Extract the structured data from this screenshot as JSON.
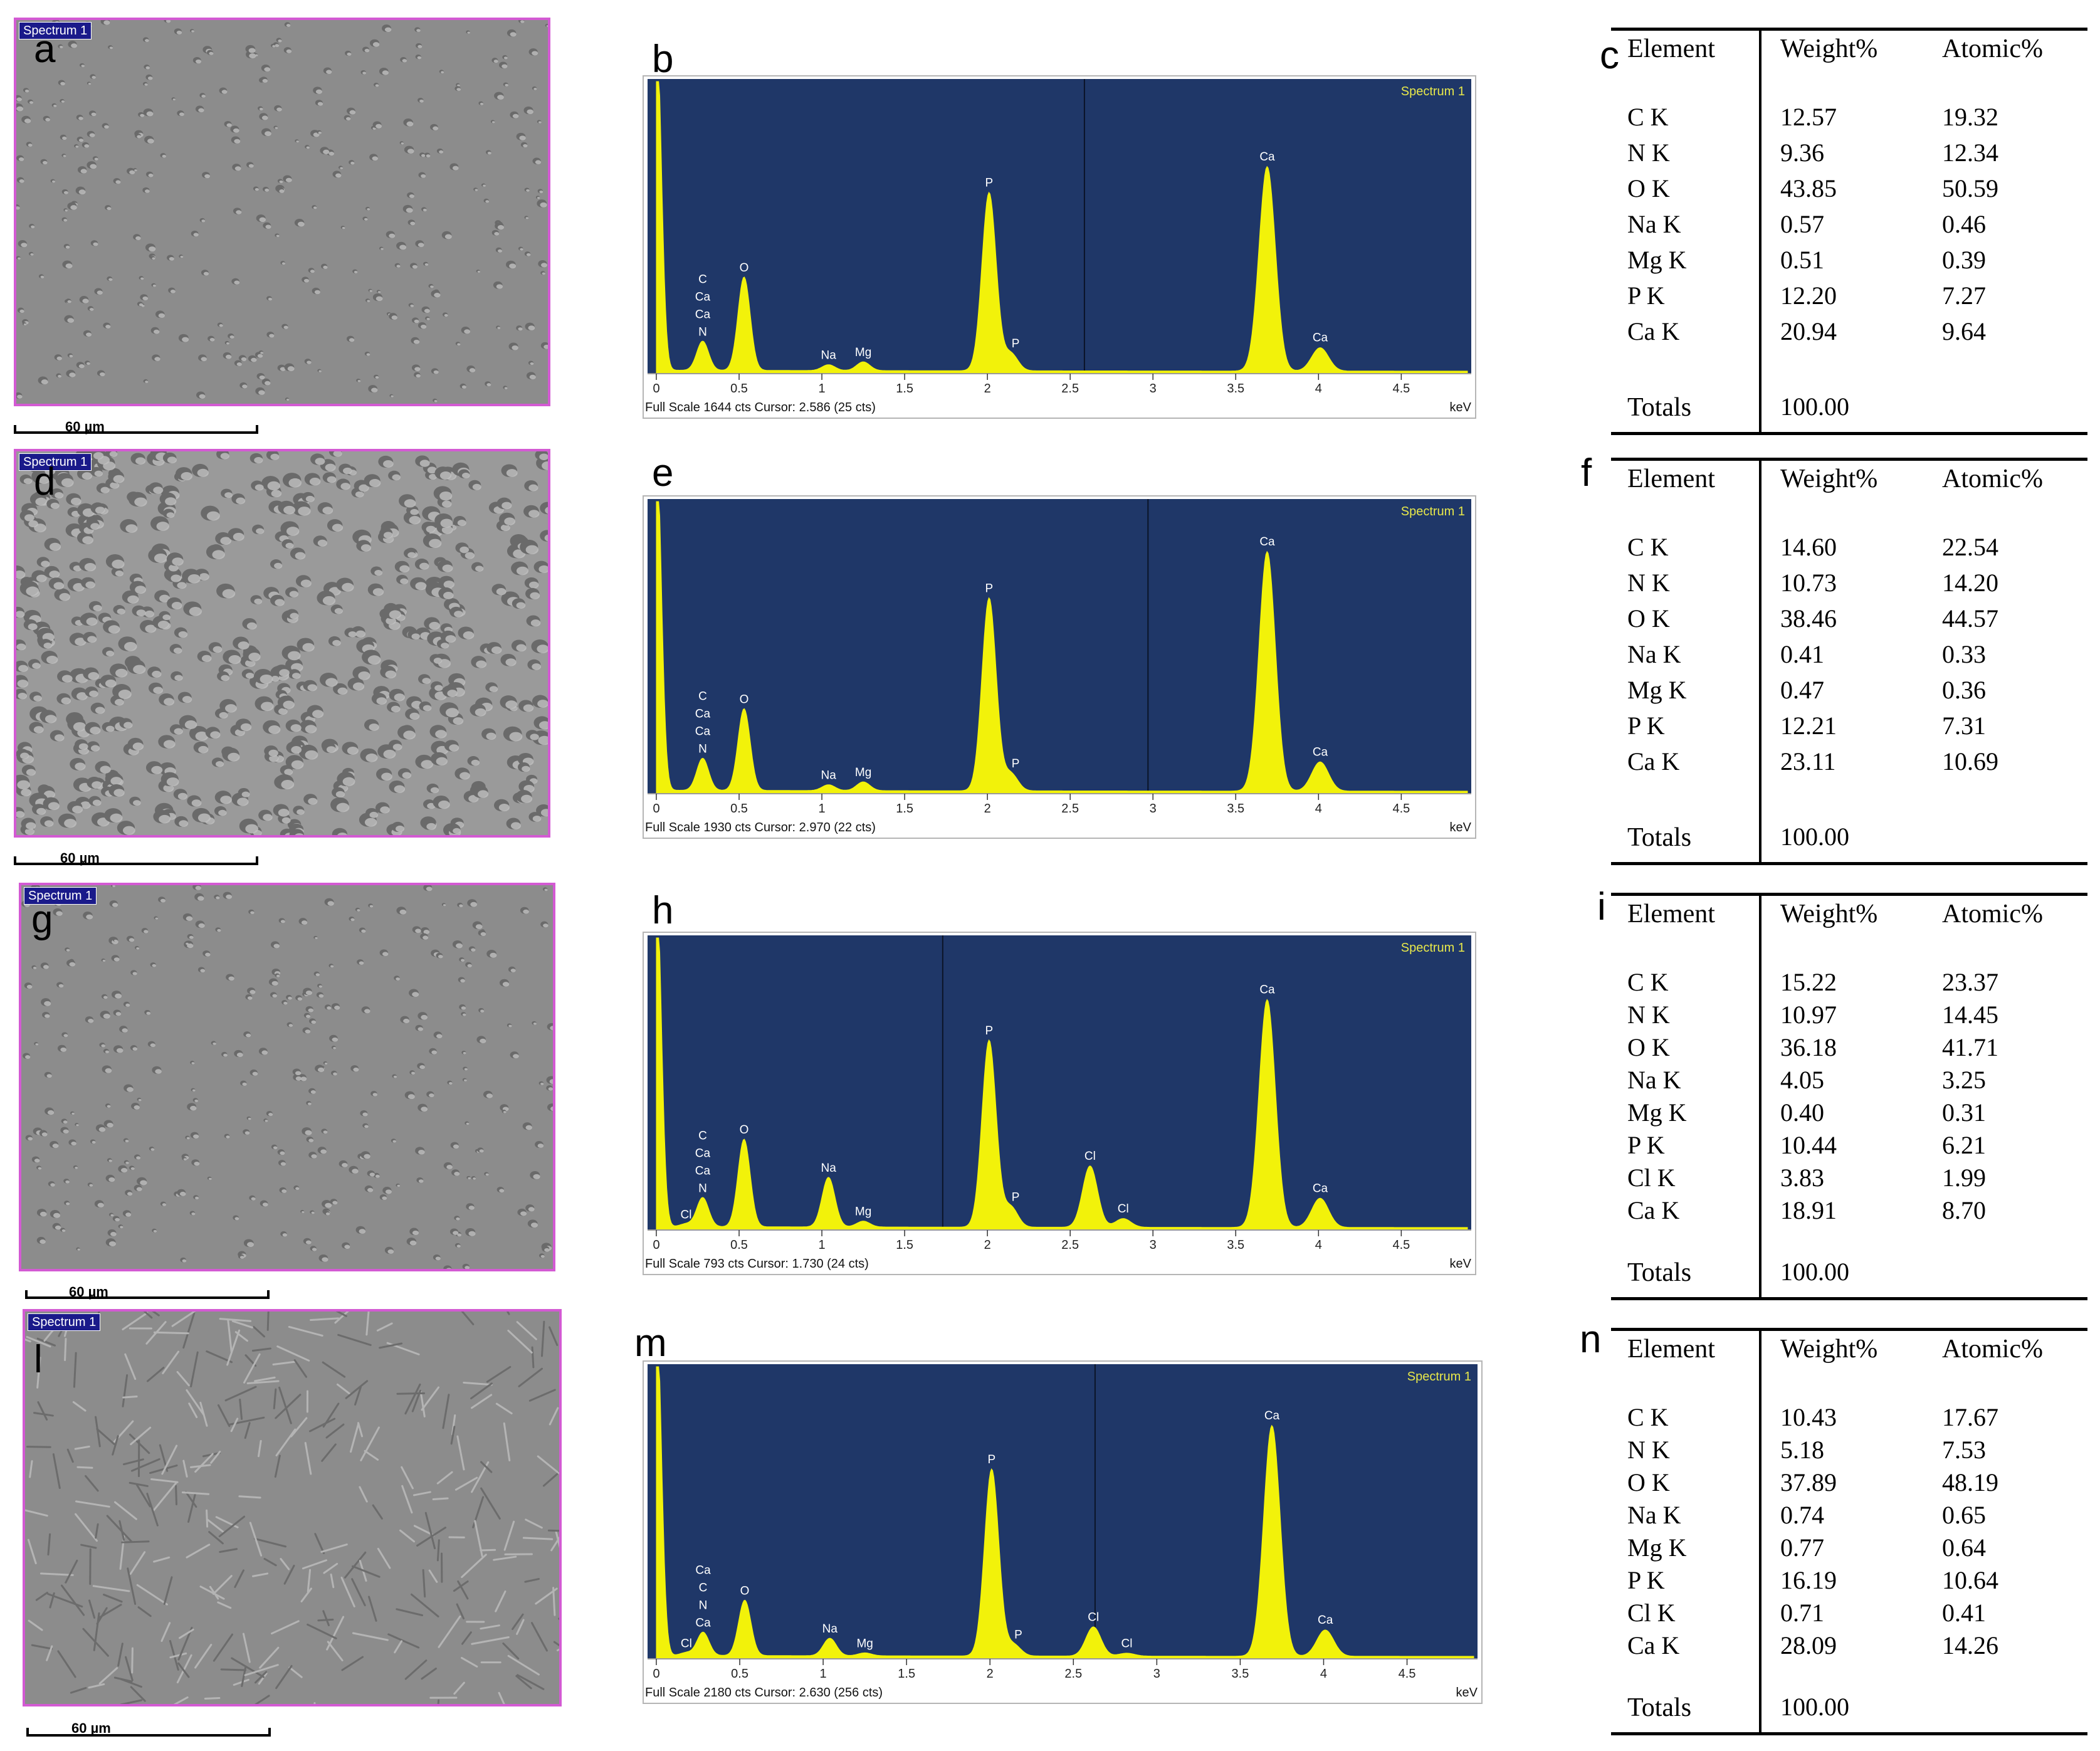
{
  "panels": [
    {
      "sem": {
        "label": "a",
        "tag": "Spectrum 1",
        "scale": "60 µm"
      },
      "spectrum": {
        "label": "b",
        "title": "Spectrum 1",
        "footer": "Full Scale 1644 cts Cursor: 2.586  (25 cts)",
        "unit": "keV",
        "cursor": 2.586
      },
      "table": {
        "label": "c",
        "headers": [
          "Element",
          "Weight%",
          "Atomic%"
        ],
        "rows": [
          [
            "C K",
            "12.57",
            "19.32"
          ],
          [
            "N K",
            "9.36",
            "12.34"
          ],
          [
            "O K",
            "43.85",
            "50.59"
          ],
          [
            "Na K",
            "0.57",
            "0.46"
          ],
          [
            "Mg K",
            "0.51",
            "0.39"
          ],
          [
            "P K",
            "12.20",
            "7.27"
          ],
          [
            "Ca K",
            "20.94",
            "9.64"
          ]
        ],
        "totals_label": "Totals",
        "totals_value": "100.00"
      }
    },
    {
      "sem": {
        "label": "d",
        "tag": "Spectrum 1",
        "scale": "60 µm"
      },
      "spectrum": {
        "label": "e",
        "title": "Spectrum 1",
        "footer": "Full Scale 1930 cts Cursor: 2.970  (22 cts)",
        "unit": "keV",
        "cursor": 2.97
      },
      "table": {
        "label": "f",
        "headers": [
          "Element",
          "Weight%",
          "Atomic%"
        ],
        "rows": [
          [
            "C K",
            "14.60",
            "22.54"
          ],
          [
            "N K",
            "10.73",
            "14.20"
          ],
          [
            "O K",
            "38.46",
            "44.57"
          ],
          [
            "Na K",
            "0.41",
            "0.33"
          ],
          [
            "Mg K",
            "0.47",
            "0.36"
          ],
          [
            "P K",
            "12.21",
            "7.31"
          ],
          [
            "Ca K",
            "23.11",
            "10.69"
          ]
        ],
        "totals_label": "Totals",
        "totals_value": "100.00"
      }
    },
    {
      "sem": {
        "label": "g",
        "tag": "Spectrum 1",
        "scale": "60 µm"
      },
      "spectrum": {
        "label": "h",
        "title": "Spectrum 1",
        "footer": "Full Scale 793 cts Cursor: 1.730  (24 cts)",
        "unit": "keV",
        "cursor": 1.73
      },
      "table": {
        "label": "i",
        "headers": [
          "Element",
          "Weight%",
          "Atomic%"
        ],
        "rows": [
          [
            "C K",
            "15.22",
            "23.37"
          ],
          [
            "N K",
            "10.97",
            "14.45"
          ],
          [
            "O K",
            "36.18",
            "41.71"
          ],
          [
            "Na K",
            "4.05",
            "3.25"
          ],
          [
            "Mg K",
            "0.40",
            "0.31"
          ],
          [
            "P K",
            "10.44",
            "6.21"
          ],
          [
            "Cl K",
            "3.83",
            "1.99"
          ],
          [
            "Ca K",
            "18.91",
            "8.70"
          ]
        ],
        "totals_label": "Totals",
        "totals_value": "100.00"
      }
    },
    {
      "sem": {
        "label": "l",
        "tag": "Spectrum 1",
        "scale": "60 µm"
      },
      "spectrum": {
        "label": "m",
        "title": "Spectrum 1",
        "footer": "Full Scale 2180 cts Cursor: 2.630  (256 cts)",
        "unit": "keV",
        "cursor": 2.63
      },
      "table": {
        "label": "n",
        "headers": [
          "Element",
          "Weight%",
          "Atomic%"
        ],
        "rows": [
          [
            "C K",
            "10.43",
            "17.67"
          ],
          [
            "N K",
            "5.18",
            "7.53"
          ],
          [
            "O K",
            "37.89",
            "48.19"
          ],
          [
            "Na K",
            "0.74",
            "0.65"
          ],
          [
            "Mg K",
            "0.77",
            "0.64"
          ],
          [
            "P K",
            "16.19",
            "10.64"
          ],
          [
            "Cl K",
            "0.71",
            "0.41"
          ],
          [
            "Ca K",
            "28.09",
            "14.26"
          ]
        ],
        "totals_label": "Totals",
        "totals_value": "100.00"
      }
    }
  ],
  "chart_data": [
    {
      "type": "line",
      "title": "Spectrum 1",
      "xlabel": "keV",
      "xlim": [
        0,
        4.9
      ],
      "xticks": [
        "0",
        "0.5",
        "1",
        "1.5",
        "2",
        "2.5",
        "3",
        "3.5",
        "4",
        "4.5"
      ],
      "peaks": [
        {
          "label": "",
          "x": 0.0,
          "y": 1.2
        },
        {
          "label": "C\nCa\nCa\nN",
          "x": 0.28,
          "y": 0.1
        },
        {
          "label": "O",
          "x": 0.53,
          "y": 0.32
        },
        {
          "label": "Na",
          "x": 1.04,
          "y": 0.02
        },
        {
          "label": "Mg",
          "x": 1.25,
          "y": 0.03
        },
        {
          "label": "P",
          "x": 2.01,
          "y": 0.61
        },
        {
          "label": "P",
          "x": 2.14,
          "y": 0.06
        },
        {
          "label": "Ca",
          "x": 3.69,
          "y": 0.7
        },
        {
          "label": "Ca",
          "x": 4.01,
          "y": 0.08
        }
      ]
    },
    {
      "type": "line",
      "title": "Spectrum 1",
      "xlabel": "keV",
      "xlim": [
        0,
        4.9
      ],
      "xticks": [
        "0",
        "0.5",
        "1",
        "1.5",
        "2",
        "2.5",
        "3",
        "3.5",
        "4",
        "4.5"
      ],
      "peaks": [
        {
          "label": "",
          "x": 0.0,
          "y": 1.2
        },
        {
          "label": "C\nCa\nCa\nN",
          "x": 0.28,
          "y": 0.11
        },
        {
          "label": "O",
          "x": 0.53,
          "y": 0.28
        },
        {
          "label": "Na",
          "x": 1.04,
          "y": 0.02
        },
        {
          "label": "Mg",
          "x": 1.25,
          "y": 0.03
        },
        {
          "label": "P",
          "x": 2.01,
          "y": 0.66
        },
        {
          "label": "P",
          "x": 2.14,
          "y": 0.06
        },
        {
          "label": "Ca",
          "x": 3.69,
          "y": 0.82
        },
        {
          "label": "Ca",
          "x": 4.01,
          "y": 0.1
        }
      ]
    },
    {
      "type": "line",
      "title": "Spectrum 1",
      "xlabel": "keV",
      "xlim": [
        0,
        4.9
      ],
      "xticks": [
        "0",
        "0.5",
        "1",
        "1.5",
        "2",
        "2.5",
        "3",
        "3.5",
        "4",
        "4.5"
      ],
      "peaks": [
        {
          "label": "",
          "x": 0.0,
          "y": 1.2
        },
        {
          "label": "Cl",
          "x": 0.18,
          "y": 0.01
        },
        {
          "label": "C\nCa\nCa\nN",
          "x": 0.28,
          "y": 0.1
        },
        {
          "label": "O",
          "x": 0.53,
          "y": 0.3
        },
        {
          "label": "Na",
          "x": 1.04,
          "y": 0.17
        },
        {
          "label": "Mg",
          "x": 1.25,
          "y": 0.02
        },
        {
          "label": "P",
          "x": 2.01,
          "y": 0.64
        },
        {
          "label": "P",
          "x": 2.14,
          "y": 0.07
        },
        {
          "label": "Cl",
          "x": 2.62,
          "y": 0.21
        },
        {
          "label": "Cl",
          "x": 2.82,
          "y": 0.03
        },
        {
          "label": "Ca",
          "x": 3.69,
          "y": 0.78
        },
        {
          "label": "Ca",
          "x": 4.01,
          "y": 0.1
        }
      ]
    },
    {
      "type": "line",
      "title": "Spectrum 1",
      "xlabel": "keV",
      "xlim": [
        0,
        4.9
      ],
      "xticks": [
        "0",
        "0.5",
        "1",
        "1.5",
        "2",
        "2.5",
        "3",
        "3.5",
        "4",
        "4.5"
      ],
      "peaks": [
        {
          "label": "",
          "x": 0.0,
          "y": 1.2
        },
        {
          "label": "Cl",
          "x": 0.18,
          "y": 0.01
        },
        {
          "label": "Ca\nC\nN\nCa",
          "x": 0.28,
          "y": 0.08
        },
        {
          "label": "O",
          "x": 0.53,
          "y": 0.19
        },
        {
          "label": "Na",
          "x": 1.04,
          "y": 0.06
        },
        {
          "label": "Mg",
          "x": 1.25,
          "y": 0.01
        },
        {
          "label": "P",
          "x": 2.01,
          "y": 0.64
        },
        {
          "label": "P",
          "x": 2.14,
          "y": 0.04
        },
        {
          "label": "Cl",
          "x": 2.62,
          "y": 0.1
        },
        {
          "label": "Cl",
          "x": 2.82,
          "y": 0.01
        },
        {
          "label": "Ca",
          "x": 3.69,
          "y": 0.79
        },
        {
          "label": "Ca",
          "x": 4.01,
          "y": 0.09
        }
      ]
    }
  ],
  "colors": {
    "spectrum_bg": "#1f3768",
    "spectrum_fill": "#f2f20a",
    "spectrum_text": "#e8e84a",
    "sem_border": "#d35ad3",
    "sem_tag_bg": "#1a1a8a"
  }
}
